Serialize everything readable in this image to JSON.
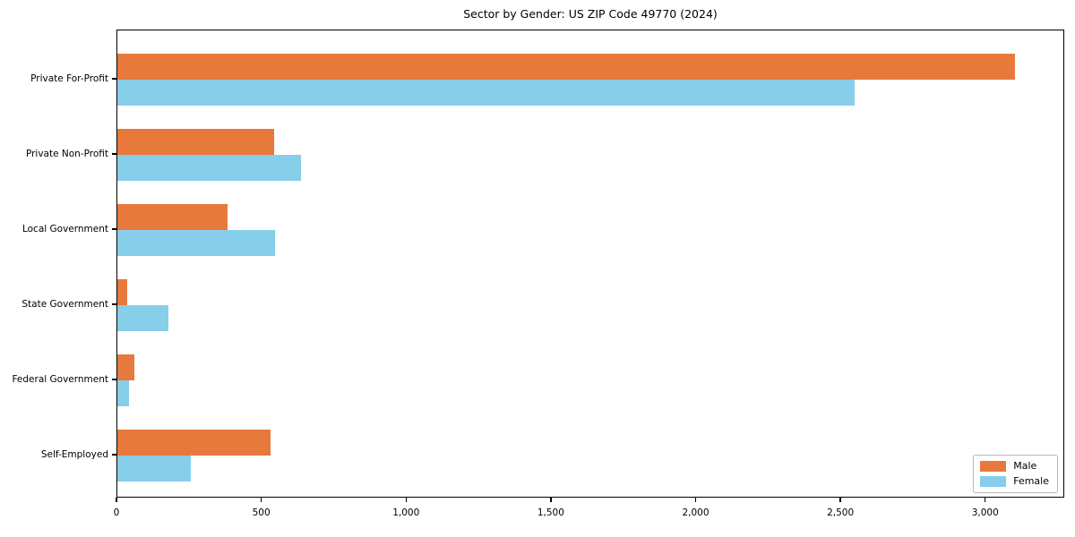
{
  "chart_data": {
    "type": "bar",
    "orientation": "horizontal",
    "title": "Sector by Gender: US ZIP Code 49770 (2024)",
    "categories": [
      "Private For-Profit",
      "Private Non-Profit",
      "Local Government",
      "State Government",
      "Federal Government",
      "Self-Employed"
    ],
    "series": [
      {
        "name": "Male",
        "color": "#e8793c",
        "values": [
          3100,
          540,
          380,
          35,
          60,
          530
        ]
      },
      {
        "name": "Female",
        "color": "#87ceeb",
        "values": [
          2545,
          635,
          545,
          175,
          40,
          255
        ]
      }
    ],
    "xlabel": "",
    "ylabel": "",
    "xlim": [
      0,
      3265
    ],
    "x_ticks": [
      0,
      500,
      1000,
      1500,
      2000,
      2500,
      3000
    ],
    "x_tick_labels": [
      "0",
      "500",
      "1,000",
      "1,500",
      "2,000",
      "2,500",
      "3,000"
    ],
    "legend": {
      "position": "lower right",
      "entries": [
        "Male",
        "Female"
      ]
    },
    "grid": false,
    "background_color": "#ffffff",
    "axis_color": "#000000"
  }
}
